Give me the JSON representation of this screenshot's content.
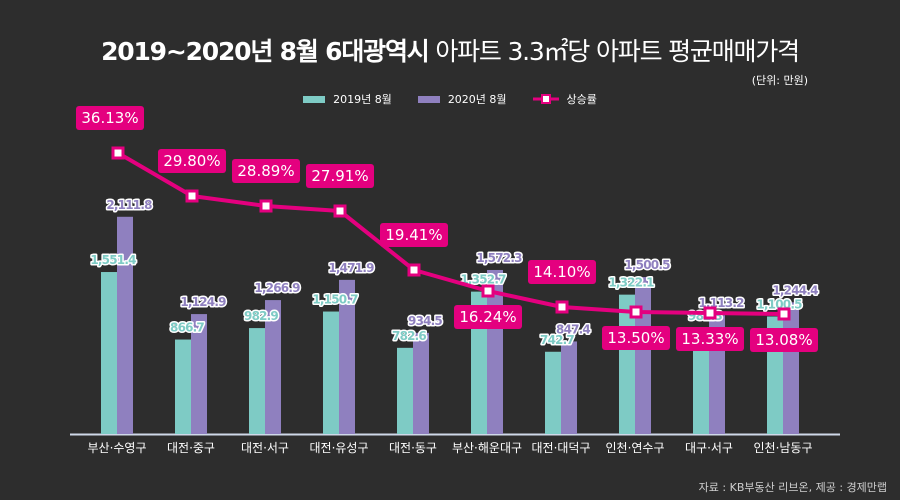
{
  "title": {
    "bold": "2019~2020년 8월 6대광역시",
    "light": "아파트 3.3㎡당 아파트 평균매매가격"
  },
  "unit": "(단위: 만원)",
  "legend": [
    {
      "label": "2019년 8월",
      "color": "#7ecbc5"
    },
    {
      "label": "2020년 8월",
      "color": "#8f80bf"
    },
    {
      "label": "상승률",
      "color": "#e4007f"
    }
  ],
  "source": "자료 : KB부동산 리브온, 제공 : 경제만랩",
  "chart_data": {
    "type": "bar",
    "title": "2019~2020년 8월 6대광역시 아파트 3.3㎡당 아파트 평균매매가격",
    "unit": "만원",
    "categories": [
      "부산·수영구",
      "대전·중구",
      "대전·서구",
      "대전·유성구",
      "대전·동구",
      "부산·해운대구",
      "대전·대덕구",
      "인천·연수구",
      "대구·서구",
      "인천·남동구"
    ],
    "series": [
      {
        "name": "2019년 8월",
        "color": "#7ecbc5",
        "values": [
          1551.4,
          866.7,
          982.9,
          1150.7,
          782.6,
          1352.7,
          742.7,
          1322.1,
          982.3,
          1100.5
        ],
        "labels": [
          "1,551.4",
          "866.7",
          "982.9",
          "1,150.7",
          "782.6",
          "1,352.7",
          "742.7",
          "1,322.1",
          "982.3",
          "1,100.5"
        ]
      },
      {
        "name": "2020년 8월",
        "color": "#8f80bf",
        "values": [
          2111.8,
          1124.9,
          1266.9,
          1471.9,
          934.5,
          1572.3,
          847.4,
          1500.5,
          1113.2,
          1244.4
        ],
        "labels": [
          "2,111.8",
          "1,124.9",
          "1,266.9",
          "1,471.9",
          "934.5",
          "1,572.3",
          "847.4",
          "1,500.5",
          "1,113.2",
          "1,244.4"
        ]
      },
      {
        "name": "상승률",
        "type": "line",
        "color": "#e4007f",
        "values": [
          36.13,
          29.8,
          28.89,
          27.91,
          19.41,
          16.24,
          14.1,
          13.5,
          13.33,
          13.08
        ],
        "labels": [
          "36.13%",
          "29.80%",
          "28.89%",
          "27.91%",
          "19.41%",
          "16.24%",
          "14.10%",
          "13.50%",
          "13.33%",
          "13.08%"
        ]
      }
    ],
    "legend_position": "top-center",
    "grid": false
  }
}
